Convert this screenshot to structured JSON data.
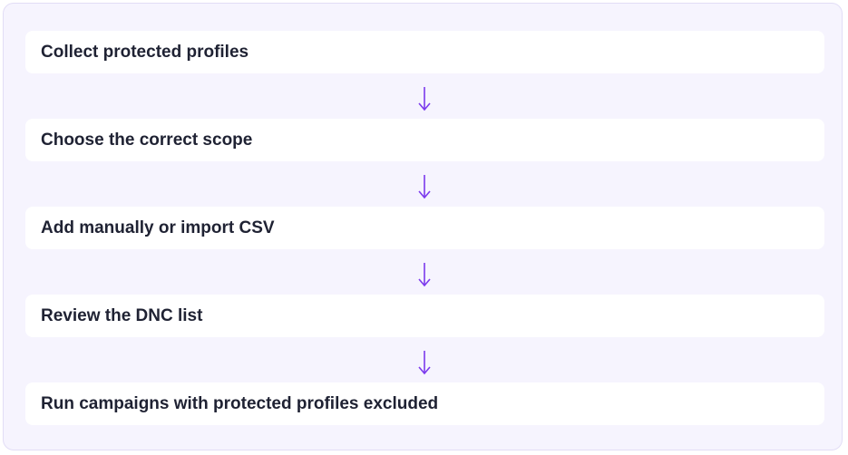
{
  "steps": [
    "Collect protected profiles",
    "Choose the correct scope",
    "Add manually or import CSV",
    "Review the DNC list",
    "Run campaigns with protected profiles excluded"
  ]
}
